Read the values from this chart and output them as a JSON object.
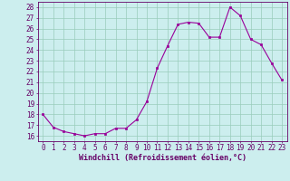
{
  "x": [
    0,
    1,
    2,
    3,
    4,
    5,
    6,
    7,
    8,
    9,
    10,
    11,
    12,
    13,
    14,
    15,
    16,
    17,
    18,
    19,
    20,
    21,
    22,
    23
  ],
  "y": [
    18,
    16.8,
    16.4,
    16.2,
    16.0,
    16.2,
    16.2,
    16.7,
    16.7,
    17.5,
    19.2,
    22.3,
    24.4,
    26.4,
    26.6,
    26.5,
    25.2,
    25.2,
    28.0,
    27.2,
    25.0,
    24.5,
    22.8,
    21.2
  ],
  "line_color": "#990099",
  "marker_color": "#990099",
  "bg_color": "#cceeee",
  "grid_color": "#99ccbb",
  "xlabel": "Windchill (Refroidissement éolien,°C)",
  "ylabel_ticks": [
    16,
    17,
    18,
    19,
    20,
    21,
    22,
    23,
    24,
    25,
    26,
    27,
    28
  ],
  "xlim": [
    -0.5,
    23.5
  ],
  "ylim": [
    15.5,
    28.5
  ],
  "axis_color": "#660066",
  "tick_fontsize": 5.5,
  "xlabel_fontsize": 6.0
}
